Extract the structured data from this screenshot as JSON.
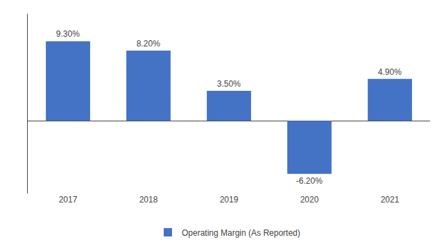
{
  "chart_data": {
    "type": "bar",
    "categories": [
      "2017",
      "2018",
      "2019",
      "2020",
      "2021"
    ],
    "series": [
      {
        "name": "Operating Margin (As Reported)",
        "color": "#4472C4",
        "values": [
          9.3,
          8.2,
          3.5,
          -6.2,
          4.9
        ],
        "value_labels": [
          "9.30%",
          "8.20%",
          "3.50%",
          "-6.20%",
          "4.90%"
        ]
      }
    ],
    "ylim": [
      -8.5,
      12.5
    ],
    "tick_labels": "x",
    "data_labels": true,
    "legend": "bottom",
    "grid": false
  }
}
